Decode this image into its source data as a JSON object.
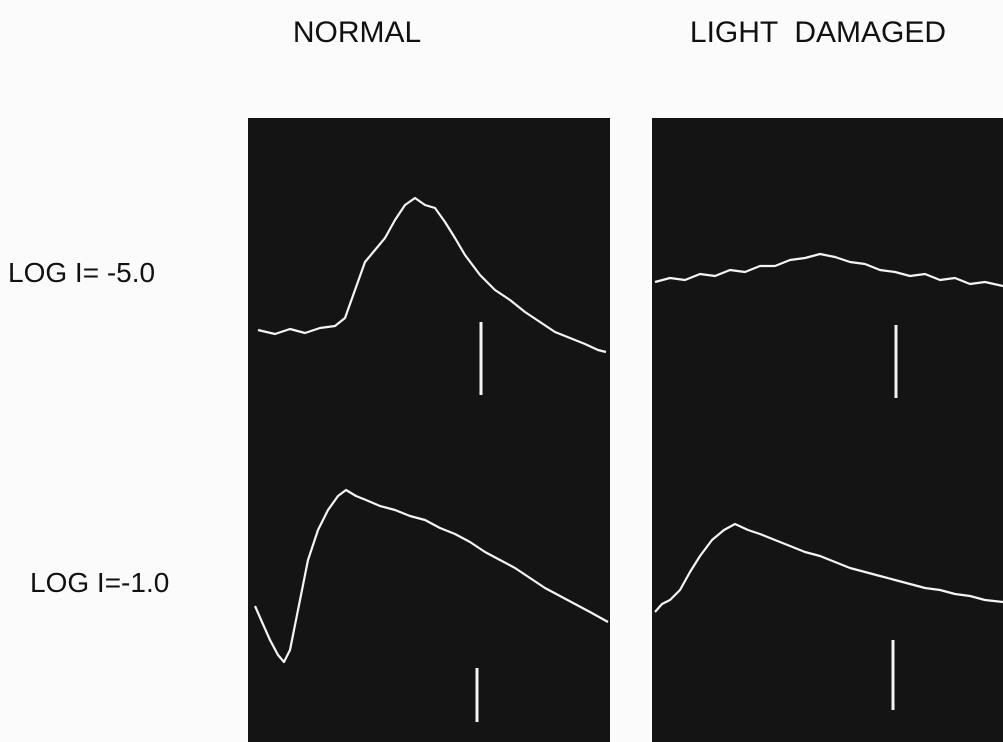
{
  "figure": {
    "columns": [
      "NORMAL",
      "LIGHT  DAMAGED"
    ],
    "rows": [
      "LOG I= -5.0",
      "LOG I=-1.0"
    ]
  }
}
